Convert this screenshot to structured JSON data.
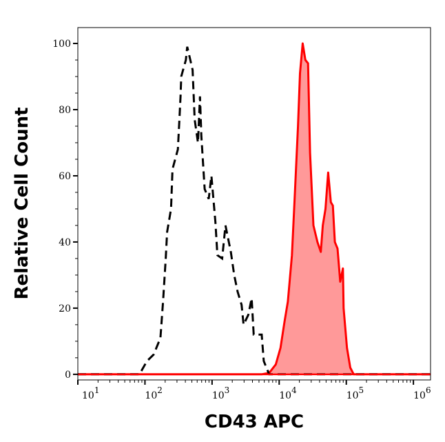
{
  "chart_data": {
    "type": "area",
    "title": "",
    "xlabel": "CD43 APC",
    "ylabel": "Relative Cell Count",
    "x_scale": "log",
    "xlim": [
      10,
      1800000
    ],
    "ylim": [
      -1.7,
      104.8
    ],
    "x_ticks": [
      {
        "value": 10,
        "base": "10",
        "exp": "1"
      },
      {
        "value": 100,
        "base": "10",
        "exp": "2"
      },
      {
        "value": 1000,
        "base": "10",
        "exp": "3"
      },
      {
        "value": 10000,
        "base": "10",
        "exp": "4"
      },
      {
        "value": 100000,
        "base": "10",
        "exp": "5"
      },
      {
        "value": 1000000,
        "base": "10",
        "exp": "6"
      }
    ],
    "y_ticks": [
      {
        "value": 0,
        "label": "0"
      },
      {
        "value": 20,
        "label": "20"
      },
      {
        "value": 40,
        "label": "40"
      },
      {
        "value": 60,
        "label": "60"
      },
      {
        "value": 80,
        "label": "80"
      },
      {
        "value": 100,
        "label": "100"
      }
    ],
    "grid": false,
    "legend": "none",
    "series": [
      {
        "style": "dashed-line",
        "color": "#000000",
        "x": [
          10,
          60,
          83,
          107,
          135,
          170,
          186,
          204,
          214,
          245,
          257,
          309,
          324,
          339,
          347,
          407,
          427,
          513,
          550,
          617,
          661,
          692,
          776,
          891,
          977,
          1122,
          1202,
          1413,
          1585,
          1905,
          2138,
          2399,
          2754,
          2951,
          3467,
          3890,
          4169,
          5495,
          5888,
          7079,
          1800000
        ],
        "y": [
          0,
          0,
          0,
          4,
          6,
          11,
          22,
          35,
          43,
          50,
          62,
          68,
          76,
          84,
          90,
          95,
          99,
          92,
          77,
          70,
          84,
          72,
          56,
          53,
          60,
          46,
          36,
          35,
          45,
          37,
          30,
          25,
          21,
          15,
          18,
          23,
          12,
          12,
          4,
          0,
          0
        ]
      },
      {
        "style": "filled",
        "color": "#ff0000",
        "fill": "#ff9999",
        "x": [
          10,
          5495,
          7079,
          8913,
          10471,
          12023,
          13490,
          15488,
          16982,
          19055,
          20417,
          22387,
          24547,
          26915,
          28840,
          32359,
          37154,
          41687,
          44668,
          48978,
          53703,
          58884,
          63096,
          67608,
          74131,
          81283,
          89125,
          91201,
          102329,
          114815,
          128825,
          1800000
        ],
        "y": [
          0,
          0,
          0.4,
          3,
          8,
          16,
          22,
          36,
          53,
          75,
          91,
          100,
          95,
          94,
          67,
          45,
          40,
          37,
          45,
          50,
          61,
          52,
          51,
          40,
          38,
          28,
          32,
          20,
          8,
          2,
          0,
          0
        ]
      }
    ]
  }
}
